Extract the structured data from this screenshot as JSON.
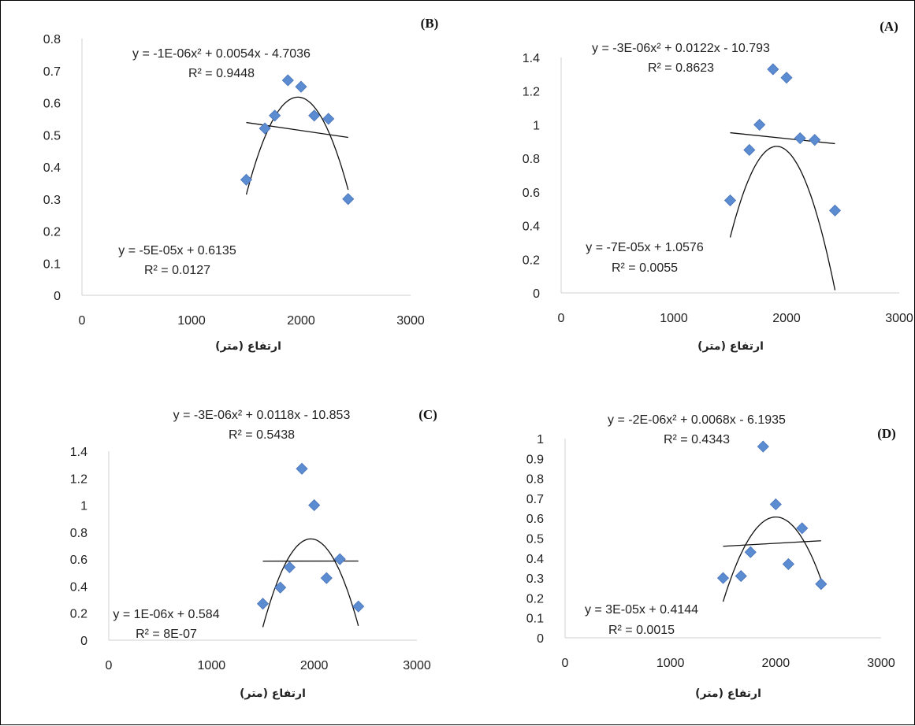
{
  "colors": {
    "marker": "#5b8bd0",
    "line": "#111111",
    "axis": "#d0d0d0"
  },
  "chart_data": [
    {
      "type": "scatter",
      "panel_label": "(A)",
      "xlabel": "ارتفاع (متر)",
      "xlim": [
        0,
        3000
      ],
      "ylim": [
        0,
        1.4
      ],
      "xticks": [
        0,
        1000,
        2000,
        3000
      ],
      "yticks": [
        0,
        0.2,
        0.4,
        0.6,
        0.8,
        1,
        1.2,
        1.4
      ],
      "points": [
        [
          1500,
          0.55
        ],
        [
          1670,
          0.85
        ],
        [
          1760,
          1.0
        ],
        [
          1880,
          1.33
        ],
        [
          2000,
          1.28
        ],
        [
          2120,
          0.92
        ],
        [
          2250,
          0.91
        ],
        [
          2430,
          0.49
        ]
      ],
      "poly_trend": {
        "eq": "y = -3E-06x² + 0.0122x - 10.793",
        "r2": "R² = 0.8623",
        "coef": [
          -3.19e-06,
          0.0122,
          -10.793
        ],
        "x_range": [
          1500,
          2430
        ]
      },
      "linear_trend": {
        "eq": "y = -7E-05x + 1.0576",
        "r2": "R² = 0.0055",
        "coef": [
          -7e-05,
          1.0576
        ],
        "x_range": [
          1500,
          2430
        ]
      }
    },
    {
      "type": "scatter",
      "panel_label": "(B)",
      "xlabel": "ارتفاع (متر)",
      "xlim": [
        0,
        3000
      ],
      "ylim": [
        0,
        0.8
      ],
      "xticks": [
        0,
        1000,
        2000,
        3000
      ],
      "yticks": [
        0,
        0.1,
        0.2,
        0.3,
        0.4,
        0.5,
        0.6,
        0.7,
        0.8
      ],
      "points": [
        [
          1500,
          0.36
        ],
        [
          1670,
          0.52
        ],
        [
          1760,
          0.56
        ],
        [
          1880,
          0.67
        ],
        [
          2000,
          0.65
        ],
        [
          2120,
          0.56
        ],
        [
          2250,
          0.55
        ],
        [
          2430,
          0.3
        ]
      ],
      "poly_trend": {
        "eq": "y = -1E-06x² + 0.0054x - 4.7036",
        "r2": "R² = 0.9448",
        "coef": [
          -1.37e-06,
          0.0054,
          -4.7036
        ],
        "x_range": [
          1500,
          2430
        ]
      },
      "linear_trend": {
        "eq": "y = -5E-05x + 0.6135",
        "r2": "R² = 0.0127",
        "coef": [
          -5e-05,
          0.6135
        ],
        "x_range": [
          1500,
          2430
        ]
      }
    },
    {
      "type": "scatter",
      "panel_label": "(C)",
      "xlabel": "ارتفاع (متر)",
      "xlim": [
        0,
        3000
      ],
      "ylim": [
        0,
        1.4
      ],
      "xticks": [
        0,
        1000,
        2000,
        3000
      ],
      "yticks": [
        0,
        0.2,
        0.4,
        0.6,
        0.8,
        1,
        1.2,
        1.4
      ],
      "points": [
        [
          1500,
          0.27
        ],
        [
          1670,
          0.39
        ],
        [
          1760,
          0.54
        ],
        [
          1880,
          1.27
        ],
        [
          2000,
          1.0
        ],
        [
          2120,
          0.46
        ],
        [
          2250,
          0.6
        ],
        [
          2430,
          0.25
        ]
      ],
      "poly_trend": {
        "eq": "y = -3E-06x² + 0.0118x - 10.853",
        "r2": "R² = 0.5438",
        "coef": [
          -3e-06,
          0.0118,
          -10.853
        ],
        "x_range": [
          1500,
          2430
        ]
      },
      "linear_trend": {
        "eq": "y = 1E-06x + 0.584",
        "r2": "R² = 8E-07",
        "coef": [
          1e-06,
          0.584
        ],
        "x_range": [
          1500,
          2430
        ]
      }
    },
    {
      "type": "scatter",
      "panel_label": "(D)",
      "xlabel": "ارتفاع (متر)",
      "xlim": [
        0,
        3000
      ],
      "ylim": [
        0,
        1
      ],
      "xticks": [
        0,
        1000,
        2000,
        3000
      ],
      "yticks": [
        0,
        0.1,
        0.2,
        0.3,
        0.4,
        0.5,
        0.6,
        0.7,
        0.8,
        0.9,
        1
      ],
      "points": [
        [
          1500,
          0.3
        ],
        [
          1670,
          0.31
        ],
        [
          1760,
          0.43
        ],
        [
          1880,
          0.96
        ],
        [
          2000,
          0.67
        ],
        [
          2120,
          0.37
        ],
        [
          2250,
          0.55
        ],
        [
          2430,
          0.27
        ]
      ],
      "poly_trend": {
        "eq": "y = -2E-06x² + 0.0068x - 6.1935",
        "r2": "R² = 0.4343",
        "coef": [
          -1.7e-06,
          0.0068,
          -6.1935
        ],
        "x_range": [
          1500,
          2430
        ]
      },
      "linear_trend": {
        "eq": "y = 3E-05x + 0.4144",
        "r2": "R² = 0.0015",
        "coef": [
          3e-05,
          0.4144
        ],
        "x_range": [
          1500,
          2430
        ]
      }
    }
  ]
}
